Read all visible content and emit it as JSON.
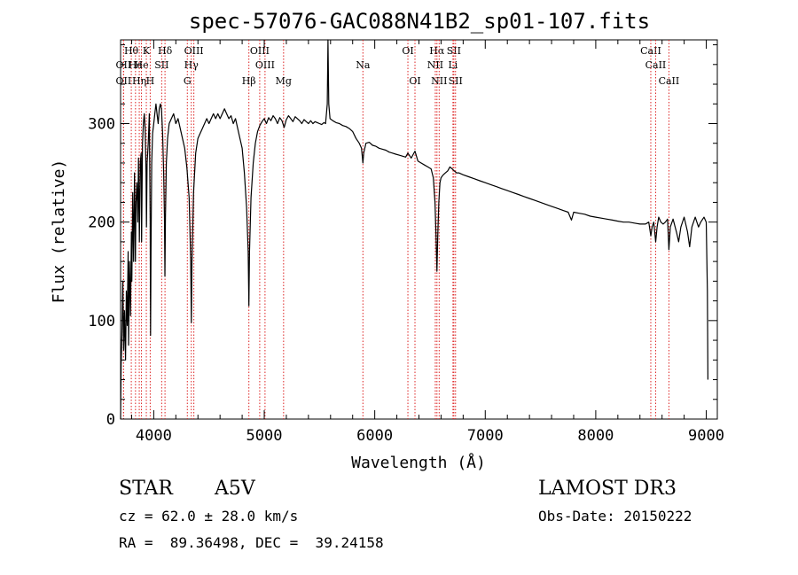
{
  "chart_data": {
    "type": "line",
    "title": "spec-57076-GAC088N41B2_sp01-107.fits",
    "xlabel": "Wavelength (Å)",
    "ylabel": "Flux (relative)",
    "xlim": [
      3700,
      9100
    ],
    "ylim": [
      0,
      385
    ],
    "xticks": [
      4000,
      5000,
      6000,
      7000,
      8000,
      9000
    ],
    "xtick_labels": [
      "4000",
      "5000",
      "6000",
      "7000",
      "8000",
      "9000"
    ],
    "yticks": [
      0,
      100,
      200,
      300
    ],
    "ytick_labels": [
      "0",
      "100",
      "200",
      "300"
    ],
    "series": [
      {
        "name": "spectrum",
        "points": [
          [
            3700,
            0
          ],
          [
            3705,
            55
          ],
          [
            3712,
            85
          ],
          [
            3720,
            140
          ],
          [
            3728,
            70
          ],
          [
            3735,
            110
          ],
          [
            3745,
            60
          ],
          [
            3752,
            130
          ],
          [
            3760,
            95
          ],
          [
            3768,
            170
          ],
          [
            3772,
            75
          ],
          [
            3780,
            160
          ],
          [
            3790,
            105
          ],
          [
            3798,
            190
          ],
          [
            3802,
            140
          ],
          [
            3810,
            230
          ],
          [
            3818,
            160
          ],
          [
            3826,
            250
          ],
          [
            3834,
            160
          ],
          [
            3840,
            220
          ],
          [
            3848,
            240
          ],
          [
            3856,
            200
          ],
          [
            3862,
            265
          ],
          [
            3870,
            180
          ],
          [
            3878,
            260
          ],
          [
            3886,
            270
          ],
          [
            3890,
            180
          ],
          [
            3898,
            280
          ],
          [
            3906,
            300
          ],
          [
            3914,
            310
          ],
          [
            3922,
            295
          ],
          [
            3930,
            250
          ],
          [
            3934,
            195
          ],
          [
            3940,
            260
          ],
          [
            3950,
            280
          ],
          [
            3960,
            310
          ],
          [
            3968,
            200
          ],
          [
            3971,
            85
          ],
          [
            3975,
            170
          ],
          [
            3982,
            260
          ],
          [
            3990,
            290
          ],
          [
            4000,
            300
          ],
          [
            4010,
            310
          ],
          [
            4020,
            320
          ],
          [
            4030,
            310
          ],
          [
            4040,
            300
          ],
          [
            4050,
            315
          ],
          [
            4060,
            320
          ],
          [
            4070,
            315
          ],
          [
            4080,
            290
          ],
          [
            4090,
            250
          ],
          [
            4097,
            205
          ],
          [
            4101,
            145
          ],
          [
            4106,
            205
          ],
          [
            4114,
            260
          ],
          [
            4125,
            285
          ],
          [
            4140,
            300
          ],
          [
            4160,
            305
          ],
          [
            4180,
            310
          ],
          [
            4200,
            300
          ],
          [
            4220,
            305
          ],
          [
            4240,
            295
          ],
          [
            4260,
            285
          ],
          [
            4280,
            275
          ],
          [
            4300,
            255
          ],
          [
            4320,
            225
          ],
          [
            4335,
            160
          ],
          [
            4340,
            98
          ],
          [
            4346,
            160
          ],
          [
            4360,
            230
          ],
          [
            4380,
            270
          ],
          [
            4400,
            285
          ],
          [
            4420,
            290
          ],
          [
            4440,
            295
          ],
          [
            4460,
            300
          ],
          [
            4480,
            305
          ],
          [
            4500,
            300
          ],
          [
            4520,
            305
          ],
          [
            4540,
            310
          ],
          [
            4560,
            305
          ],
          [
            4580,
            310
          ],
          [
            4600,
            305
          ],
          [
            4620,
            310
          ],
          [
            4640,
            315
          ],
          [
            4660,
            310
          ],
          [
            4680,
            305
          ],
          [
            4700,
            308
          ],
          [
            4720,
            300
          ],
          [
            4740,
            305
          ],
          [
            4760,
            295
          ],
          [
            4780,
            285
          ],
          [
            4800,
            275
          ],
          [
            4820,
            250
          ],
          [
            4840,
            215
          ],
          [
            4855,
            170
          ],
          [
            4861,
            115
          ],
          [
            4867,
            170
          ],
          [
            4880,
            225
          ],
          [
            4900,
            260
          ],
          [
            4920,
            280
          ],
          [
            4940,
            292
          ],
          [
            4960,
            298
          ],
          [
            4980,
            302
          ],
          [
            5000,
            305
          ],
          [
            5020,
            300
          ],
          [
            5040,
            306
          ],
          [
            5060,
            303
          ],
          [
            5080,
            308
          ],
          [
            5100,
            305
          ],
          [
            5120,
            300
          ],
          [
            5140,
            306
          ],
          [
            5160,
            303
          ],
          [
            5180,
            296
          ],
          [
            5200,
            304
          ],
          [
            5220,
            308
          ],
          [
            5240,
            305
          ],
          [
            5260,
            302
          ],
          [
            5280,
            307
          ],
          [
            5300,
            305
          ],
          [
            5320,
            303
          ],
          [
            5340,
            300
          ],
          [
            5360,
            304
          ],
          [
            5380,
            302
          ],
          [
            5400,
            300
          ],
          [
            5420,
            303
          ],
          [
            5440,
            300
          ],
          [
            5460,
            302
          ],
          [
            5480,
            301
          ],
          [
            5500,
            300
          ],
          [
            5520,
            299
          ],
          [
            5540,
            301
          ],
          [
            5555,
            300
          ],
          [
            5570,
            320
          ],
          [
            5577,
            385
          ],
          [
            5584,
            320
          ],
          [
            5595,
            305
          ],
          [
            5620,
            303
          ],
          [
            5650,
            301
          ],
          [
            5680,
            300
          ],
          [
            5710,
            298
          ],
          [
            5740,
            297
          ],
          [
            5770,
            295
          ],
          [
            5800,
            292
          ],
          [
            5830,
            285
          ],
          [
            5860,
            280
          ],
          [
            5880,
            275
          ],
          [
            5893,
            260
          ],
          [
            5900,
            270
          ],
          [
            5920,
            280
          ],
          [
            5950,
            281
          ],
          [
            5980,
            278
          ],
          [
            6010,
            277
          ],
          [
            6040,
            275
          ],
          [
            6070,
            274
          ],
          [
            6100,
            273
          ],
          [
            6130,
            271
          ],
          [
            6160,
            270
          ],
          [
            6190,
            269
          ],
          [
            6220,
            268
          ],
          [
            6250,
            267
          ],
          [
            6280,
            266
          ],
          [
            6300,
            270
          ],
          [
            6330,
            265
          ],
          [
            6364,
            272
          ],
          [
            6390,
            262
          ],
          [
            6420,
            260
          ],
          [
            6450,
            258
          ],
          [
            6480,
            256
          ],
          [
            6510,
            254
          ],
          [
            6530,
            245
          ],
          [
            6545,
            220
          ],
          [
            6555,
            185
          ],
          [
            6563,
            150
          ],
          [
            6570,
            185
          ],
          [
            6580,
            220
          ],
          [
            6590,
            240
          ],
          [
            6600,
            245
          ],
          [
            6620,
            248
          ],
          [
            6640,
            250
          ],
          [
            6660,
            252
          ],
          [
            6680,
            256
          ],
          [
            6700,
            254
          ],
          [
            6720,
            252
          ],
          [
            6740,
            250
          ],
          [
            6760,
            250
          ],
          [
            6800,
            248
          ],
          [
            6850,
            246
          ],
          [
            6900,
            244
          ],
          [
            6950,
            242
          ],
          [
            7000,
            240
          ],
          [
            7050,
            238
          ],
          [
            7100,
            236
          ],
          [
            7150,
            234
          ],
          [
            7200,
            232
          ],
          [
            7250,
            230
          ],
          [
            7300,
            228
          ],
          [
            7350,
            226
          ],
          [
            7400,
            224
          ],
          [
            7450,
            222
          ],
          [
            7500,
            220
          ],
          [
            7550,
            218
          ],
          [
            7600,
            216
          ],
          [
            7650,
            214
          ],
          [
            7700,
            212
          ],
          [
            7750,
            210
          ],
          [
            7780,
            202
          ],
          [
            7800,
            210
          ],
          [
            7850,
            209
          ],
          [
            7900,
            208
          ],
          [
            7950,
            206
          ],
          [
            8000,
            205
          ],
          [
            8050,
            204
          ],
          [
            8100,
            203
          ],
          [
            8150,
            202
          ],
          [
            8200,
            201
          ],
          [
            8250,
            200
          ],
          [
            8300,
            200
          ],
          [
            8350,
            199
          ],
          [
            8400,
            198
          ],
          [
            8450,
            198
          ],
          [
            8480,
            200
          ],
          [
            8498,
            186
          ],
          [
            8510,
            195
          ],
          [
            8525,
            200
          ],
          [
            8542,
            180
          ],
          [
            8555,
            195
          ],
          [
            8570,
            205
          ],
          [
            8590,
            200
          ],
          [
            8610,
            198
          ],
          [
            8630,
            200
          ],
          [
            8650,
            203
          ],
          [
            8662,
            172
          ],
          [
            8675,
            195
          ],
          [
            8700,
            203
          ],
          [
            8730,
            190
          ],
          [
            8750,
            180
          ],
          [
            8770,
            195
          ],
          [
            8800,
            205
          ],
          [
            8830,
            190
          ],
          [
            8850,
            175
          ],
          [
            8870,
            195
          ],
          [
            8900,
            205
          ],
          [
            8930,
            195
          ],
          [
            8950,
            200
          ],
          [
            8980,
            205
          ],
          [
            9000,
            200
          ],
          [
            9010,
            130
          ],
          [
            9015,
            40
          ]
        ]
      }
    ],
    "line_groups": [
      {
        "lines": [
          [
            3797,
            "Hθ",
            1
          ],
          [
            3835,
            "He",
            2
          ],
          [
            3889,
            "He",
            2
          ],
          [
            3933,
            "K",
            1
          ],
          [
            3968,
            "H",
            3
          ],
          [
            4102,
            "Hδ",
            1
          ],
          [
            4304,
            "G",
            3
          ],
          [
            4340,
            "Hγ",
            2
          ],
          [
            4861,
            "Hβ",
            3
          ],
          [
            5175,
            "Mg",
            3
          ],
          [
            5893,
            "Na",
            2
          ],
          [
            6563,
            "Hα",
            1
          ]
        ]
      },
      {
        "lines": [
          [
            3727,
            "OII",
            2
          ],
          [
            3727,
            "OII",
            3
          ],
          [
            3869,
            "Hη",
            3
          ],
          [
            4072,
            "SII",
            2
          ],
          [
            4363,
            "OIII",
            1
          ],
          [
            4959,
            "OIII",
            1
          ],
          [
            5007,
            "OIII",
            2
          ],
          [
            6300,
            "OI",
            1
          ],
          [
            6364,
            "OI",
            3
          ],
          [
            6548,
            "NII",
            2
          ],
          [
            6583,
            "NII",
            3
          ],
          [
            6716,
            "SII",
            1
          ],
          [
            6731,
            "SII",
            3
          ],
          [
            6708,
            "Li",
            2
          ],
          [
            8498,
            "CaII",
            1
          ],
          [
            8542,
            "CaII",
            2
          ],
          [
            8662,
            "CaII",
            3
          ]
        ]
      }
    ]
  },
  "info": {
    "object_class": "STAR",
    "subclass": "A5V",
    "survey": "LAMOST DR3",
    "redshift_line": "cz = 62.0 ± 28.0 km/s",
    "obs_date_line": "Obs-Date: 20150222",
    "coords_line": "RA =  89.36498, DEC =  39.24158"
  }
}
